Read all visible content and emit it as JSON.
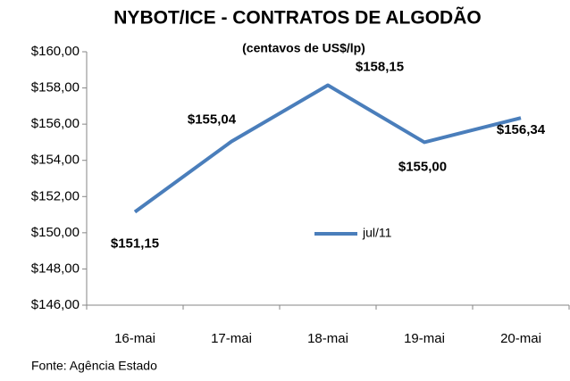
{
  "chart_data": {
    "type": "line",
    "title": "NYBOT/ICE - CONTRATOS DE ALGODÃO",
    "subtitle": "(centavos de US$/lp)",
    "source": "Fonte: Agência Estado",
    "categories": [
      "16-mai",
      "17-mai",
      "18-mai",
      "19-mai",
      "20-mai"
    ],
    "series": [
      {
        "name": "jul/11",
        "color": "#4a7ebb",
        "values": [
          151.15,
          155.04,
          158.15,
          155.0,
          156.34
        ],
        "value_labels": [
          "$151,15",
          "$155,04",
          "$158,15",
          "$155,00",
          "$156,34"
        ]
      }
    ],
    "ylim": [
      146,
      160
    ],
    "yticks": [
      {
        "value": 146,
        "label": "$146,00"
      },
      {
        "value": 148,
        "label": "$148,00"
      },
      {
        "value": 150,
        "label": "$150,00"
      },
      {
        "value": 152,
        "label": "$152,00"
      },
      {
        "value": 154,
        "label": "$154,00"
      },
      {
        "value": 156,
        "label": "$156,00"
      },
      {
        "value": 158,
        "label": "$158,00"
      },
      {
        "value": 160,
        "label": "$160,00"
      }
    ],
    "grid": false
  }
}
